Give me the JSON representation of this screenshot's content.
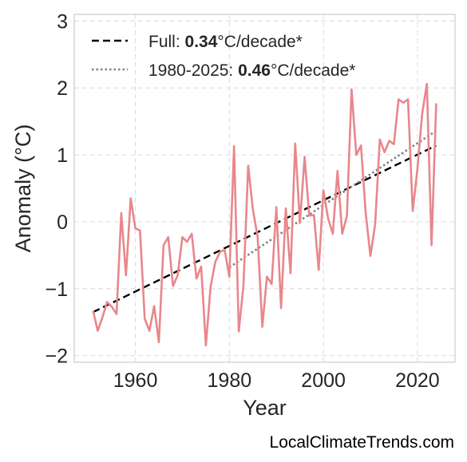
{
  "chart_data": {
    "type": "line",
    "xlabel": "Year",
    "ylabel": "Anomaly (°C)",
    "xlim": [
      1947,
      2028
    ],
    "ylim": [
      -2.1,
      3.1
    ],
    "x_ticks": [
      1960,
      1980,
      2000,
      2020
    ],
    "x_tick_labels": [
      "1960",
      "1980",
      "2000",
      "2020"
    ],
    "y_ticks": [
      -2,
      -1,
      0,
      1,
      2,
      3
    ],
    "y_tick_labels": [
      "−2",
      "−1",
      "0",
      "1",
      "2",
      "3"
    ],
    "grid": true,
    "legend_position": "top-left",
    "series": [
      {
        "color": "#e8878b",
        "x": [
          1951,
          1952,
          1953,
          1954,
          1955,
          1956,
          1957,
          1958,
          1959,
          1960,
          1961,
          1962,
          1963,
          1964,
          1965,
          1966,
          1967,
          1968,
          1969,
          1970,
          1971,
          1972,
          1973,
          1974,
          1975,
          1976,
          1977,
          1978,
          1979,
          1980,
          1981,
          1982,
          1983,
          1984,
          1985,
          1986,
          1987,
          1988,
          1989,
          1990,
          1991,
          1992,
          1993,
          1994,
          1995,
          1996,
          1997,
          1998,
          1999,
          2000,
          2001,
          2002,
          2003,
          2004,
          2005,
          2006,
          2007,
          2008,
          2009,
          2010,
          2011,
          2012,
          2013,
          2014,
          2015,
          2016,
          2017,
          2018,
          2019,
          2020,
          2021,
          2022,
          2023,
          2024
        ],
        "y": [
          -1.33,
          -1.63,
          -1.43,
          -1.2,
          -1.27,
          -1.38,
          0.13,
          -0.8,
          0.35,
          -0.1,
          -0.13,
          -1.45,
          -1.63,
          -1.26,
          -1.8,
          -0.35,
          -0.23,
          -0.96,
          -0.8,
          -0.23,
          -0.3,
          -0.18,
          -0.85,
          -0.67,
          -1.85,
          -0.97,
          -0.6,
          -0.45,
          -0.42,
          -0.82,
          1.13,
          -1.64,
          -0.95,
          0.84,
          0.18,
          -0.22,
          -1.57,
          -0.82,
          -0.93,
          0.22,
          -1.29,
          0.2,
          -0.77,
          1.17,
          -0.02,
          0.97,
          0.09,
          0.1,
          -0.72,
          0.47,
          0.05,
          -0.18,
          0.76,
          -0.18,
          0.09,
          1.98,
          1.0,
          1.14,
          0.13,
          -0.51,
          -0.04,
          1.23,
          1.04,
          1.21,
          1.16,
          1.83,
          1.78,
          1.83,
          0.16,
          0.79,
          1.61,
          2.06,
          -0.35,
          1.77
        ]
      }
    ],
    "trend_lines": [
      {
        "style": "dashed",
        "color": "#000000",
        "x": [
          1951,
          2024
        ],
        "y": [
          -1.35,
          1.14
        ],
        "label_prefix": "Full: ",
        "label_value": "0.34",
        "label_suffix": "°C/decade*"
      },
      {
        "style": "dotted",
        "color": "#808080",
        "x": [
          1980,
          2024
        ],
        "y": [
          -0.68,
          1.36
        ],
        "label_prefix": "1980-2025: ",
        "label_value": "0.46",
        "label_suffix": "°C/decade*"
      }
    ]
  },
  "watermark": "LocalClimateTrends.com"
}
